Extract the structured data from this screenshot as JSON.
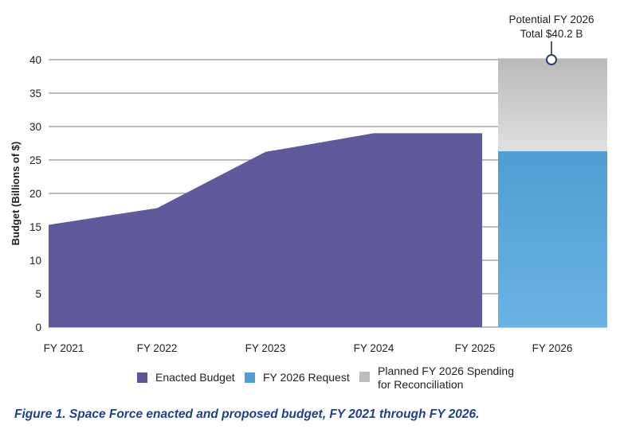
{
  "chart_data": {
    "type": "area",
    "ylabel": "Budget (Billions of $)",
    "ylim": [
      0,
      40
    ],
    "yticks": [
      0,
      5,
      10,
      15,
      20,
      25,
      30,
      35,
      40
    ],
    "grid": true,
    "categories": [
      "FY 2021",
      "FY 2022",
      "FY 2023",
      "FY 2024",
      "FY 2025",
      "FY 2026"
    ],
    "series": [
      {
        "name": "Enacted Budget",
        "type": "area",
        "color": "#5f5a9b",
        "x": [
          "FY 2021",
          "FY 2022",
          "FY 2023",
          "FY 2024",
          "FY 2025"
        ],
        "values": [
          15.3,
          17.8,
          26.2,
          29.0,
          29.0
        ]
      },
      {
        "name": "FY 2026 Request",
        "type": "bar",
        "color": "#5aa7dd",
        "x": [
          "FY 2026"
        ],
        "values": [
          26.3
        ]
      },
      {
        "name": "Planned FY 2026 Spending for Reconciliation",
        "type": "bar",
        "color": "#c9c9c9",
        "x": [
          "FY 2026"
        ],
        "values": [
          13.9
        ],
        "stacked_on": "FY 2026 Request"
      }
    ],
    "annotation": {
      "line1": "Potential FY 2026",
      "line2": "Total $40.2 B",
      "x": "FY 2026",
      "y": 40
    },
    "legend": {
      "position": "bottom",
      "items": [
        {
          "label": "Enacted Budget",
          "color": "#5c5694"
        },
        {
          "label": "FY 2026 Request",
          "color": "#4f9fd6"
        },
        {
          "label": "Planned FY 2026 Spending\nfor Reconciliation",
          "color": "#bdbdbd"
        }
      ]
    }
  },
  "caption": "Figure 1. Space Force enacted and proposed budget, FY 2021 through FY 2026."
}
